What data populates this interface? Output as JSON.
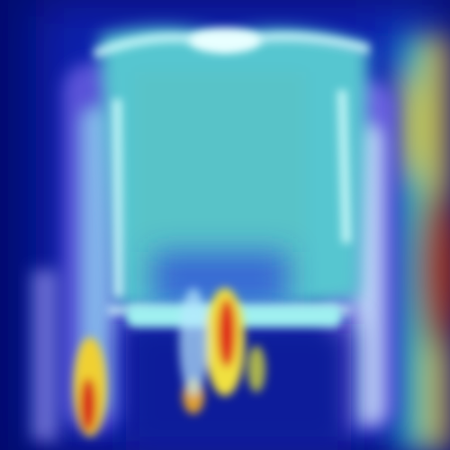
{
  "image": {
    "kind": "heatmap-overlay",
    "subject": "garment",
    "colormap": "jet",
    "palette": {
      "background": "#020a6e",
      "deep_blue": "#0a1fb0",
      "blue": "#2a55e8",
      "violet": "#7a6ee8",
      "cyan": "#7fe6e6",
      "teal": "#4fc6c8",
      "white_glow": "#e8ffff",
      "yellow": "#f2e23a",
      "orange": "#f08a22",
      "red": "#c81e1e"
    }
  }
}
